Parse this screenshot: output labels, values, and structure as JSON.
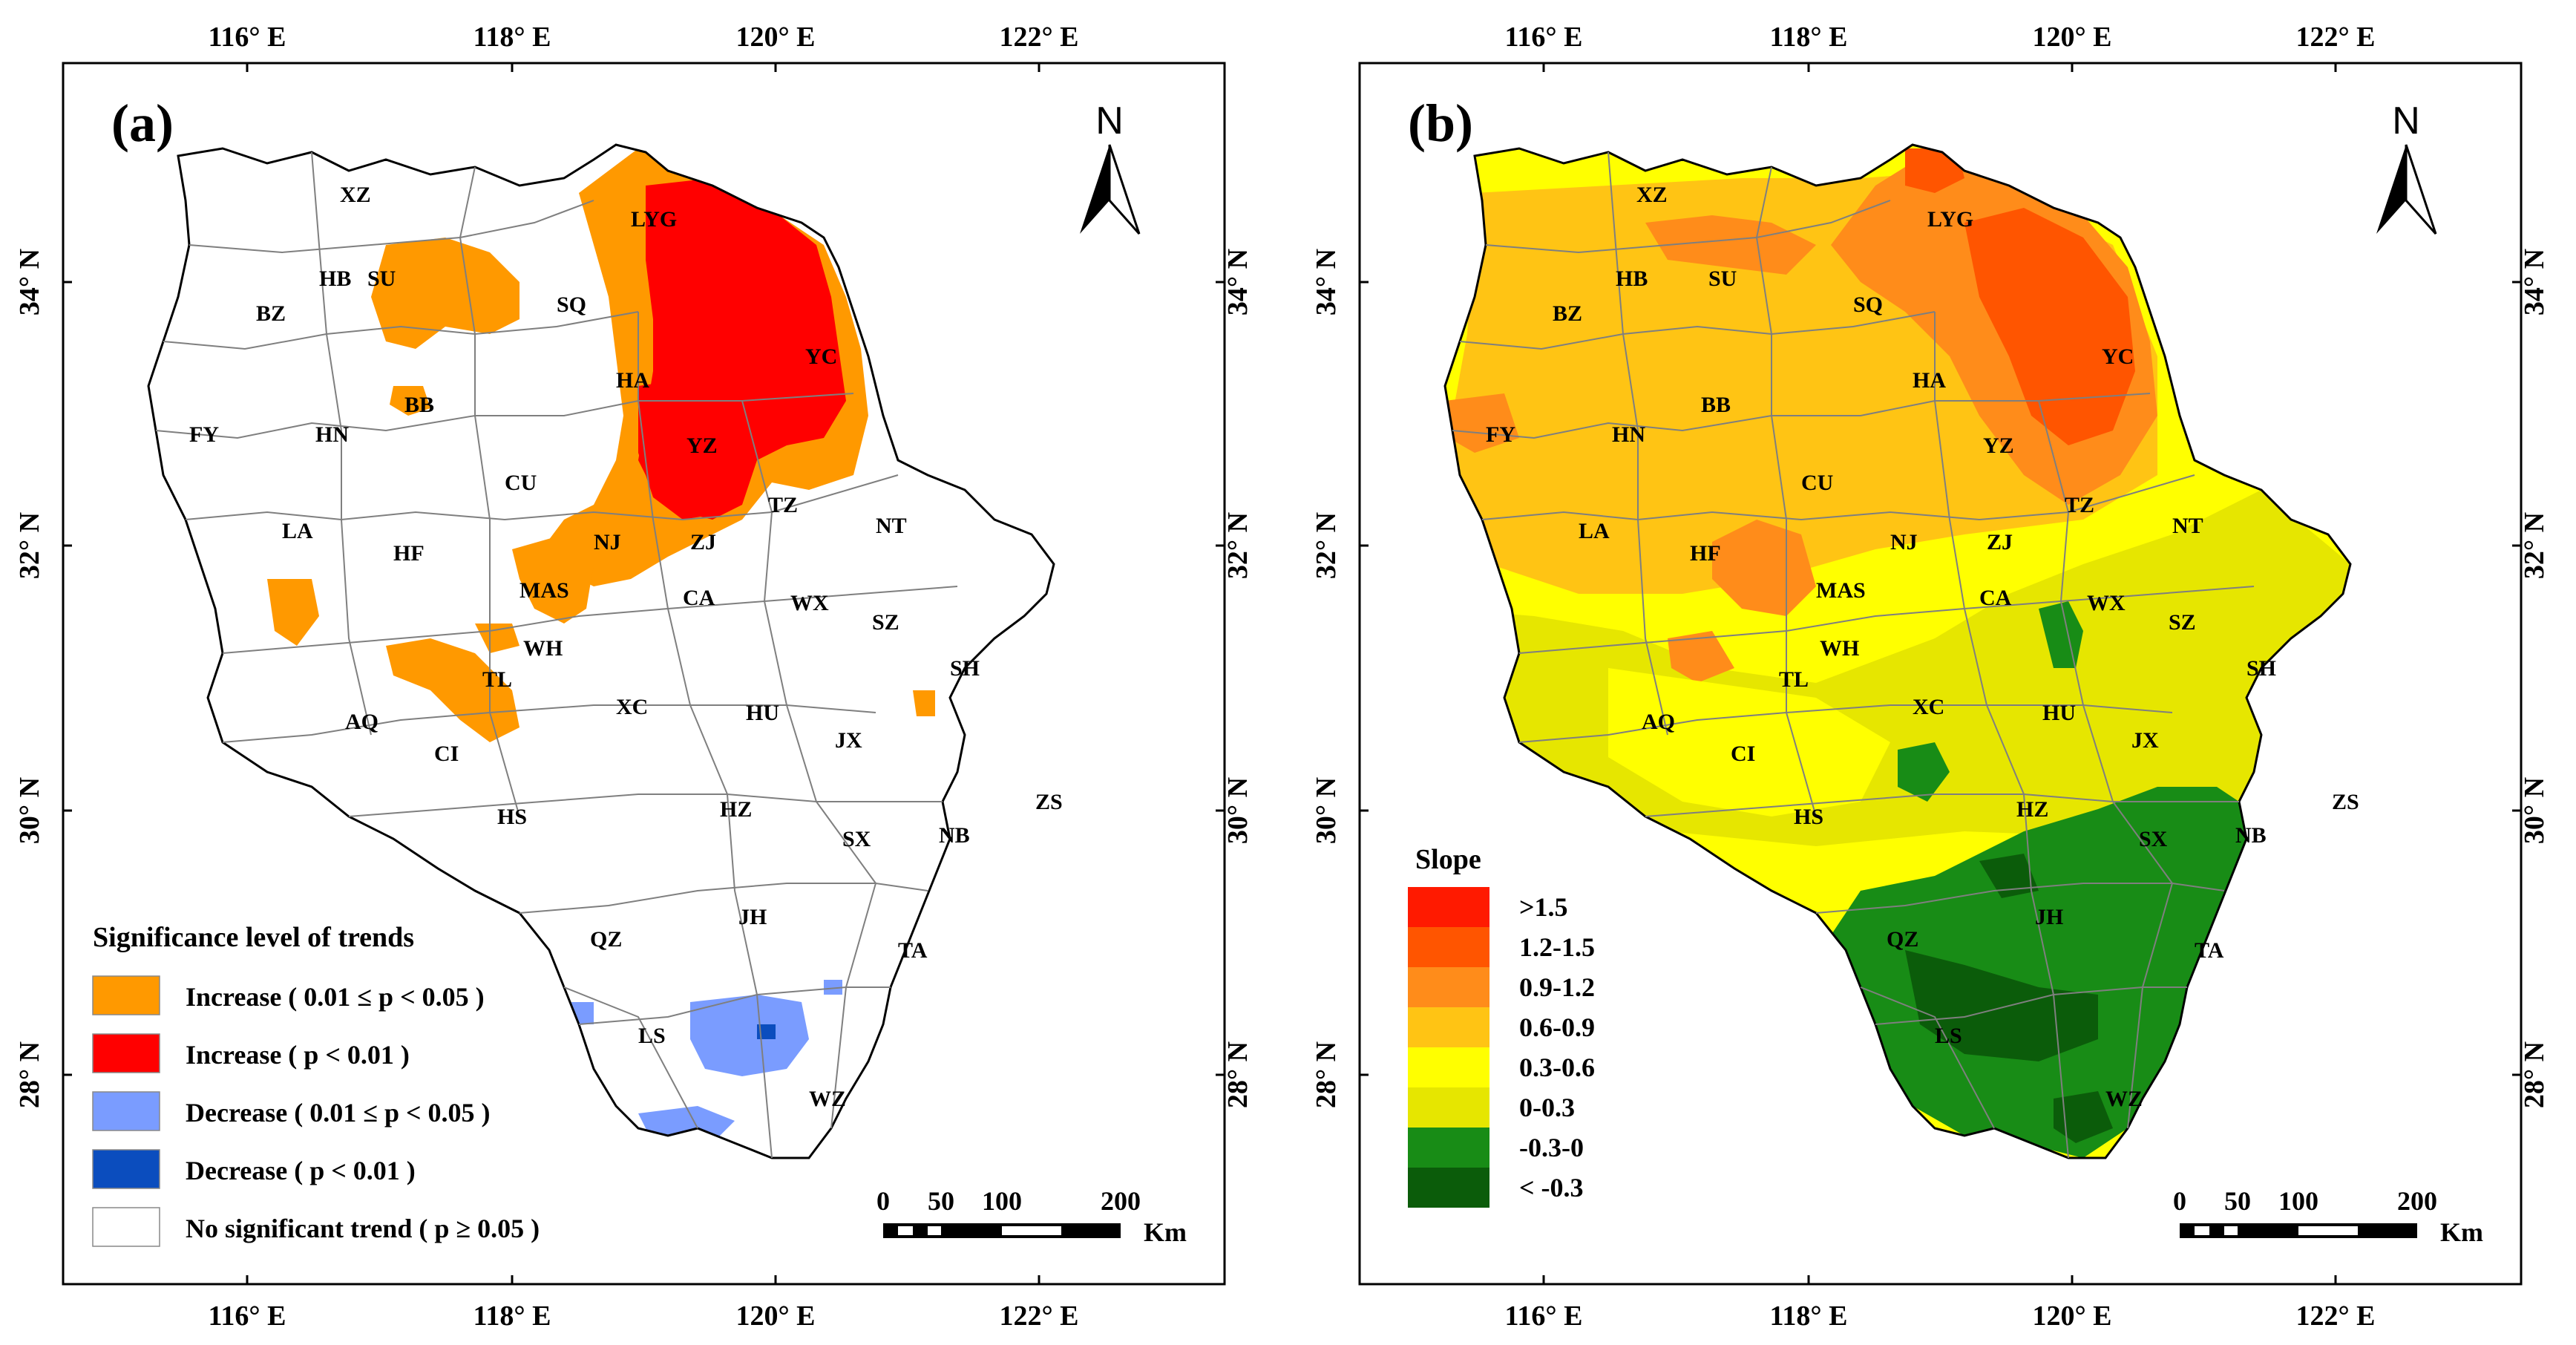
{
  "colors": {
    "increase_05": "#ff9900",
    "increase_01": "#ff0000",
    "decrease_05": "#7a9cff",
    "decrease_01": "#0b4dbe",
    "no_sig": "#ffffff",
    "boundary": "#7f7f7f",
    "slope": [
      "#ff1a00",
      "#ff5500",
      "#ff8c1a",
      "#ffc414",
      "#ffff00",
      "#e6e600",
      "#188c16",
      "#0b5c0a"
    ]
  },
  "panel_a": {
    "label": "(a)",
    "north": "N",
    "top_ticks": [
      "116° E",
      "118° E",
      "120° E",
      "122° E"
    ],
    "bottom_ticks": [
      "116° E",
      "118° E",
      "120° E",
      "122° E"
    ],
    "left_ticks": [
      "34° N",
      "32° N",
      "30° N",
      "28° N"
    ],
    "right_ticks": [
      "34° N",
      "32° N",
      "30° N",
      "28° N"
    ],
    "legend_title": "Significance level of trends",
    "legend": [
      "Increase ( 0.01 ≤ p < 0.05 )",
      "Increase ( p < 0.01 )",
      "Decrease ( 0.01 ≤ p < 0.05 )",
      "Decrease ( p < 0.01 )",
      "No significant trend ( p ≥ 0.05 )"
    ],
    "scale_labels": [
      "0",
      "50",
      "100",
      "200"
    ],
    "scale_unit": "Km",
    "cities": [
      "XZ",
      "SU",
      "HB",
      "SQ",
      "BZ",
      "YC",
      "HA",
      "BB",
      "FY",
      "HN",
      "YZ",
      "CU",
      "TZ",
      "LA",
      "NJ",
      "ZJ",
      "NT",
      "HF",
      "MAS",
      "CA",
      "WX",
      "SZ",
      "WH",
      "SH",
      "TL",
      "XC",
      "HU",
      "AQ",
      "JX",
      "CI",
      "HS",
      "HZ",
      "SX",
      "NB",
      "ZS",
      "JH",
      "QZ",
      "TA",
      "LS",
      "WZ",
      "LYG"
    ]
  },
  "panel_b": {
    "label": "(b)",
    "north": "N",
    "top_ticks": [
      "116° E",
      "118° E",
      "120° E",
      "122° E"
    ],
    "bottom_ticks": [
      "116° E",
      "118° E",
      "120° E",
      "122° E"
    ],
    "left_ticks": [
      "34° N",
      "32° N",
      "30° N",
      "28° N"
    ],
    "right_ticks": [
      "34° N",
      "32° N",
      "30° N",
      "28° N"
    ],
    "legend_title": "Slope",
    "legend": [
      ">1.5",
      "1.2-1.5",
      "0.9-1.2",
      "0.6-0.9",
      "0.3-0.6",
      "0-0.3",
      "-0.3-0",
      "< -0.3"
    ],
    "scale_labels": [
      "0",
      "50",
      "100",
      "200"
    ],
    "scale_unit": "Km",
    "cities": [
      "XZ",
      "LYG",
      "HB",
      "SU",
      "SQ",
      "BZ",
      "YC",
      "HA",
      "BB",
      "FY",
      "HN",
      "YZ",
      "CU",
      "TZ",
      "NT",
      "LA",
      "HF",
      "NJ",
      "ZJ",
      "MAS",
      "CA",
      "WX",
      "SZ",
      "WH",
      "SH",
      "TL",
      "XC",
      "HU",
      "AQ",
      "JX",
      "CI",
      "HS",
      "HZ",
      "ZS",
      "SX",
      "NB",
      "JH",
      "QZ",
      "TA",
      "LS",
      "WZ"
    ]
  }
}
